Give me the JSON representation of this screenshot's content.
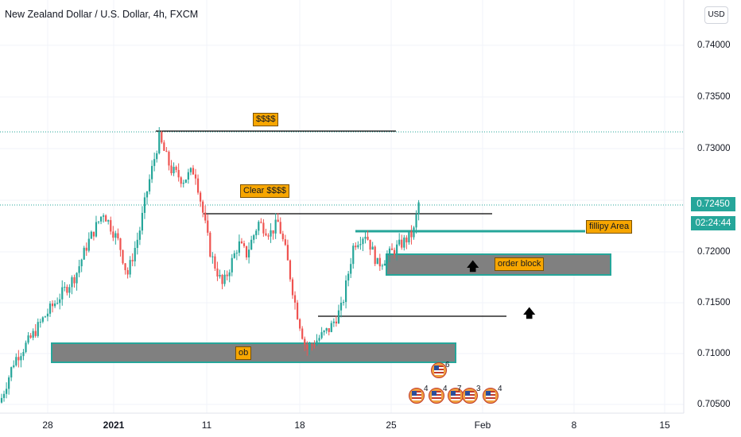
{
  "header": {
    "title": "New Zealand Dollar / U.S. Dollar, 4h, FXCM"
  },
  "currency_button": "USD",
  "y_axis": {
    "ticks": [
      "0.74000",
      "0.73500",
      "0.73000",
      "0.72000",
      "0.71500",
      "0.71000",
      "0.70500"
    ]
  },
  "x_axis": {
    "ticks": [
      "28",
      "2021",
      "11",
      "18",
      "25",
      "Feb",
      "8",
      "15"
    ]
  },
  "price_tag": {
    "price": "0.72450",
    "countdown": "02:24:44",
    "color": "#26a69a"
  },
  "annotations": {
    "dollars": "$$$$",
    "clear": "Clear  $$$$",
    "fillipy": "fillipy Area",
    "order_block": "order block",
    "ob": "ob"
  },
  "events": {
    "top": "6",
    "row": [
      "4",
      "4",
      "7",
      "3",
      "4"
    ]
  },
  "colors": {
    "up": "#26a69a",
    "down": "#ef5350",
    "zone": "#808080",
    "zone_border": "#26a69a",
    "note": "#f7a600"
  },
  "chart_data": {
    "type": "candlestick",
    "symbol": "NZDUSD",
    "interval": "4h",
    "ylim": [
      0.7045,
      0.7435
    ],
    "x": [
      "Dec 28",
      "Jan 4 2021",
      "Jan 11",
      "Jan 18",
      "Jan 25",
      "Feb 1",
      "Feb 8",
      "Feb 15"
    ],
    "close_path": [
      [
        0,
        0.7055
      ],
      [
        18,
        0.7095
      ],
      [
        38,
        0.7115
      ],
      [
        55,
        0.7135
      ],
      [
        75,
        0.7155
      ],
      [
        95,
        0.7175
      ],
      [
        110,
        0.7205
      ],
      [
        130,
        0.7235
      ],
      [
        150,
        0.7205
      ],
      [
        160,
        0.7175
      ],
      [
        175,
        0.7215
      ],
      [
        185,
        0.7255
      ],
      [
        200,
        0.7305
      ],
      [
        215,
        0.7275
      ],
      [
        230,
        0.7265
      ],
      [
        245,
        0.7275
      ],
      [
        255,
        0.7235
      ],
      [
        265,
        0.7195
      ],
      [
        280,
        0.7165
      ],
      [
        300,
        0.7205
      ],
      [
        310,
        0.7195
      ],
      [
        325,
        0.7225
      ],
      [
        340,
        0.7215
      ],
      [
        350,
        0.7225
      ],
      [
        360,
        0.7195
      ],
      [
        372,
        0.7145
      ],
      [
        385,
        0.7105
      ],
      [
        400,
        0.7115
      ],
      [
        415,
        0.7125
      ],
      [
        430,
        0.7145
      ],
      [
        445,
        0.7205
      ],
      [
        460,
        0.7215
      ],
      [
        475,
        0.7185
      ],
      [
        490,
        0.7195
      ],
      [
        505,
        0.7205
      ],
      [
        520,
        0.7215
      ],
      [
        527,
        0.7245
      ]
    ],
    "levels": {
      "dollars_line": 0.7316,
      "clear_line": 0.7235,
      "fillipy": 0.7219,
      "lower_line": 0.7135,
      "dotted_high": 0.7314,
      "dotted_last": 0.7245
    },
    "zones": {
      "order_block": [
        0.7177,
        0.7197
      ],
      "ob": [
        0.7092,
        0.711
      ]
    }
  }
}
